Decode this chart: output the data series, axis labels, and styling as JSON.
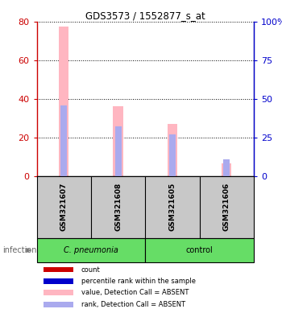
{
  "title": "GDS3573 / 1552877_s_at",
  "samples": [
    "GSM321607",
    "GSM321608",
    "GSM321605",
    "GSM321606"
  ],
  "groups": [
    "C. pneumonia",
    "C. pneumonia",
    "control",
    "control"
  ],
  "value_absent": [
    77.5,
    36.0,
    27.0,
    6.5
  ],
  "rank_absent": [
    46.0,
    32.0,
    27.0,
    11.0
  ],
  "ylim_left": [
    0,
    80
  ],
  "ylim_right": [
    0,
    100
  ],
  "yticks_left": [
    0,
    20,
    40,
    60,
    80
  ],
  "yticks_right": [
    0,
    25,
    50,
    75,
    100
  ],
  "ytick_labels_right": [
    "0",
    "25",
    "50",
    "75",
    "100%"
  ],
  "left_axis_color": "#CC0000",
  "right_axis_color": "#0000CC",
  "bar_color_absent": "#FFB6C1",
  "rank_color_absent": "#AAAAEE",
  "sample_area_color": "#C8C8C8",
  "group_color_pneumonia": "#66DD66",
  "group_color_control": "#66DD66",
  "infection_label": "infection",
  "legend_items": [
    {
      "color": "#CC0000",
      "label": "count"
    },
    {
      "color": "#0000CC",
      "label": "percentile rank within the sample"
    },
    {
      "color": "#FFB6C1",
      "label": "value, Detection Call = ABSENT"
    },
    {
      "color": "#AAAAEE",
      "label": "rank, Detection Call = ABSENT"
    }
  ],
  "bar_width": 0.18,
  "rank_bar_width": 0.12
}
